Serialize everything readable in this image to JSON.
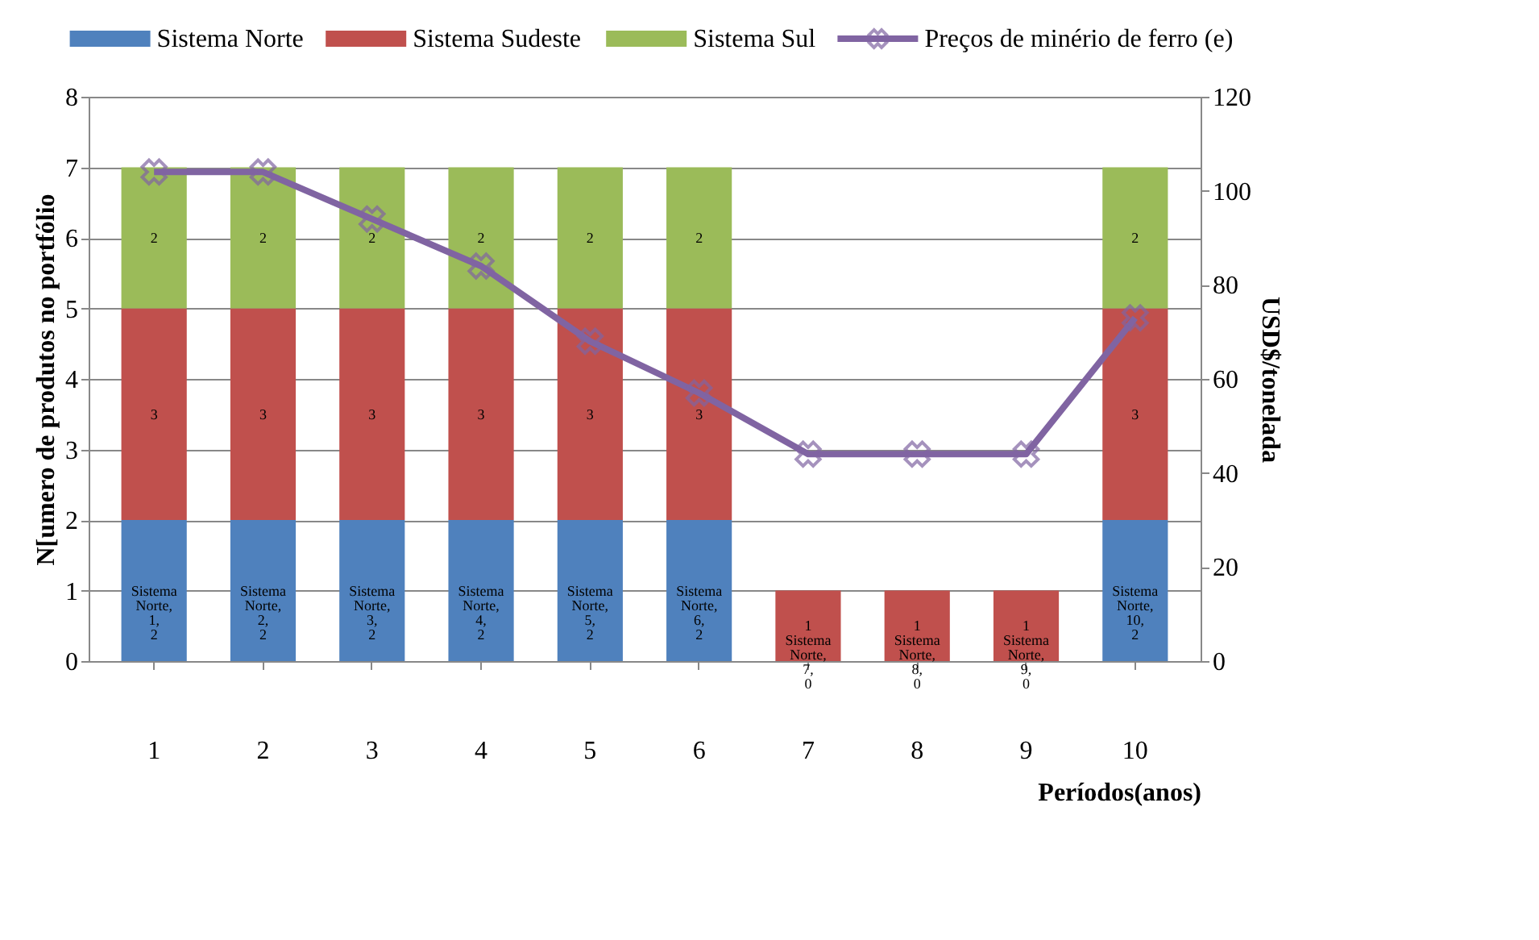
{
  "chart_data": {
    "type": "bar",
    "stacked": true,
    "categories": [
      "1",
      "2",
      "3",
      "4",
      "5",
      "6",
      "7",
      "8",
      "9",
      "10"
    ],
    "xlabel": "Períodos(anos)",
    "ylabel": "N[umero de produtos no portfólio",
    "y2label": "USD$/tonelada",
    "ylim": [
      0,
      8
    ],
    "yticks": [
      0,
      1,
      2,
      3,
      4,
      5,
      6,
      7,
      8
    ],
    "y2lim": [
      0,
      120
    ],
    "y2ticks": [
      0,
      20,
      40,
      60,
      80,
      100,
      120
    ],
    "grid": "y",
    "legend": "top",
    "marker": "cross",
    "series": [
      {
        "name": "Sistema Norte",
        "color": "#4f81bd",
        "values": [
          2,
          2,
          2,
          2,
          2,
          2,
          0,
          0,
          0,
          2
        ],
        "value_labels": [
          "Sistema Norte, 1, 2",
          "Sistema Norte, 2, 2",
          "Sistema Norte, 3, 2",
          "Sistema Norte, 4, 2",
          "Sistema Norte, 5, 2",
          "Sistema Norte, 6, 2",
          "Sistema Norte, 7, 0",
          "Sistema Norte, 8, 0",
          "Sistema Norte, 9, 0",
          "Sistema Norte, 10, 2"
        ]
      },
      {
        "name": "Sistema Sudeste",
        "color": "#c0504d",
        "values": [
          3,
          3,
          3,
          3,
          3,
          3,
          1,
          1,
          1,
          3
        ],
        "value_labels": [
          "3",
          "3",
          "3",
          "3",
          "3",
          "3",
          "1",
          "1",
          "1",
          "3"
        ]
      },
      {
        "name": "Sistema Sul",
        "color": "#9bbb59",
        "values": [
          2,
          2,
          2,
          2,
          2,
          2,
          0,
          0,
          0,
          2
        ],
        "value_labels": [
          "2",
          "2",
          "2",
          "2",
          "2",
          "2",
          null,
          null,
          null,
          "2"
        ]
      },
      {
        "name": "Preços de minério de ferro (e)",
        "type": "line",
        "axis": "y2",
        "color": "#8064a2",
        "values": [
          104,
          104,
          94,
          84,
          68,
          57,
          44,
          44,
          44,
          73
        ]
      }
    ]
  }
}
